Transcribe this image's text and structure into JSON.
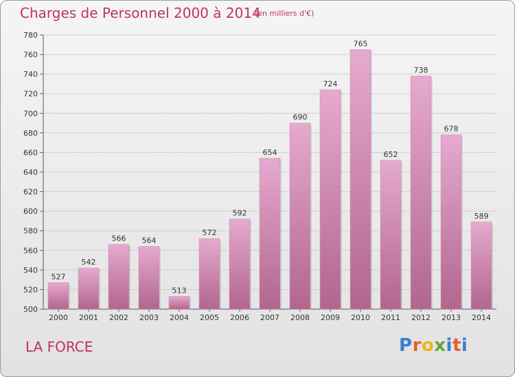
{
  "header": {
    "title": "Charges de Personnel 2000 à 2014",
    "subtitle": "(en milliers d'€)"
  },
  "footer": {
    "commune": "LA FORCE",
    "logo": [
      "P",
      "r",
      "o",
      "x",
      "i",
      "t",
      "i"
    ]
  },
  "colors": {
    "title": "#c0306a",
    "bar_top": "#e6a9cf",
    "bar_bottom": "#b1668e",
    "grid": "#cfcfcf",
    "text": "#333333"
  },
  "chart_data": {
    "type": "bar",
    "categories": [
      "2000",
      "2001",
      "2002",
      "2003",
      "2004",
      "2005",
      "2006",
      "2007",
      "2008",
      "2009",
      "2010",
      "2011",
      "2012",
      "2013",
      "2014"
    ],
    "values": [
      527,
      542,
      566,
      564,
      513,
      572,
      592,
      654,
      690,
      724,
      765,
      652,
      738,
      678,
      589
    ],
    "ylim": [
      500,
      780
    ],
    "yticks": [
      500,
      520,
      540,
      560,
      580,
      600,
      620,
      640,
      660,
      680,
      700,
      720,
      740,
      760,
      780
    ],
    "grid": true,
    "legend": "none"
  }
}
